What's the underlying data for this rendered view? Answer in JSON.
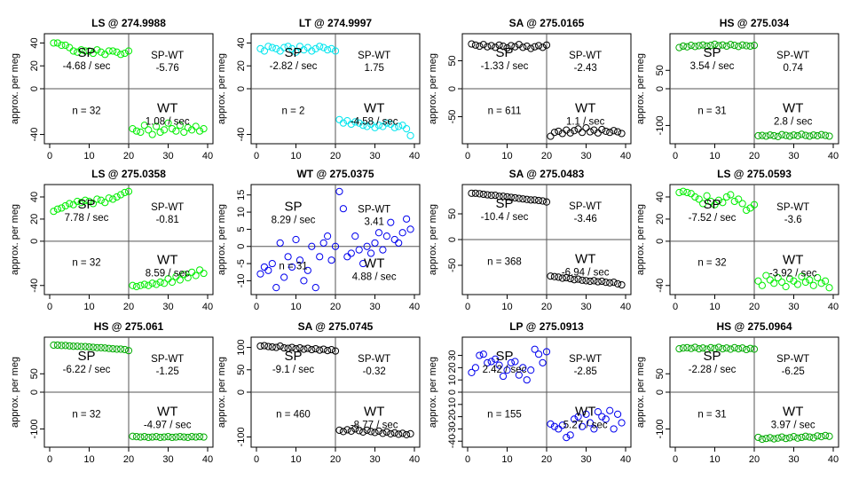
{
  "chart_data": [
    {
      "type": "scatter",
      "title": "LS @ 274.9988",
      "ylabel": "approx. per meg",
      "color": "#00ee00",
      "xlim": [
        0,
        40
      ],
      "ylim": [
        -45,
        45
      ],
      "yticks": [
        -40,
        0,
        20,
        40
      ],
      "xticks": [
        0,
        10,
        20,
        30,
        40
      ],
      "hline": 0,
      "vline": 20,
      "x": [
        1,
        2,
        3,
        4,
        5,
        6,
        7,
        8,
        9,
        10,
        11,
        12,
        13,
        14,
        15,
        16,
        17,
        18,
        19,
        20,
        21,
        22,
        23,
        24,
        25,
        26,
        27,
        28,
        29,
        30,
        31,
        32,
        33,
        34,
        35,
        36,
        37,
        38,
        39
      ],
      "y": [
        40,
        40,
        38,
        38,
        36,
        33,
        32,
        34,
        33,
        33,
        31,
        34,
        32,
        30,
        33,
        33,
        32,
        30,
        31,
        33,
        -35,
        -37,
        -38,
        -32,
        -36,
        -40,
        -33,
        -38,
        -36,
        -30,
        -35,
        -37,
        -32,
        -38,
        -34,
        -36,
        -33,
        -37,
        -35
      ],
      "labels": {
        "sp": "SP",
        "sp_rate": "-4.68 / sec",
        "spwt": "SP-WT",
        "spwt_val": "-5.76",
        "n": "n = 32",
        "wt": "WT",
        "wt_rate": "1.08 / sec"
      }
    },
    {
      "type": "scatter",
      "title": "LT @ 274.9997",
      "ylabel": "approx. per meg",
      "color": "#00e5ee",
      "xlim": [
        0,
        40
      ],
      "ylim": [
        -45,
        45
      ],
      "yticks": [
        -40,
        0,
        20,
        40
      ],
      "xticks": [
        0,
        10,
        20,
        30,
        40
      ],
      "hline": 0,
      "vline": 20,
      "x": [
        1,
        2,
        3,
        4,
        5,
        6,
        7,
        8,
        9,
        10,
        11,
        12,
        13,
        14,
        15,
        16,
        17,
        18,
        19,
        20,
        21,
        22,
        23,
        24,
        25,
        26,
        27,
        28,
        29,
        30,
        31,
        32,
        33,
        34,
        35,
        36,
        37,
        38,
        39
      ],
      "y": [
        35,
        33,
        37,
        36,
        35,
        33,
        36,
        37,
        35,
        32,
        37,
        34,
        36,
        33,
        35,
        37,
        36,
        34,
        35,
        33,
        -27,
        -30,
        -28,
        -31,
        -29,
        -30,
        -32,
        -33,
        -31,
        -34,
        -32,
        -33,
        -30,
        -31,
        -34,
        -33,
        -32,
        -35,
        -41
      ],
      "labels": {
        "sp": "SP",
        "sp_rate": "-2.82 / sec",
        "spwt": "SP-WT",
        "spwt_val": "1.75",
        "n": "n = 2",
        "wt": "WT",
        "wt_rate": "-4.58 / sec"
      }
    },
    {
      "type": "scatter",
      "title": "SA @ 275.0165",
      "ylabel": "approx. per meg",
      "color": "#000000",
      "xlim": [
        0,
        40
      ],
      "ylim": [
        -92,
        92
      ],
      "yticks": [
        -50,
        0,
        50
      ],
      "xticks": [
        0,
        10,
        20,
        30,
        40
      ],
      "hline": 0,
      "vline": 20,
      "x": [
        1,
        2,
        3,
        4,
        5,
        6,
        7,
        8,
        9,
        10,
        11,
        12,
        13,
        14,
        15,
        16,
        17,
        18,
        19,
        20,
        21,
        22,
        23,
        24,
        25,
        26,
        27,
        28,
        29,
        30,
        31,
        32,
        33,
        34,
        35,
        36,
        37,
        38,
        39
      ],
      "y": [
        80,
        78,
        76,
        79,
        75,
        77,
        74,
        78,
        76,
        73,
        77,
        75,
        79,
        74,
        76,
        72,
        75,
        77,
        74,
        78,
        -85,
        -78,
        -76,
        -80,
        -74,
        -79,
        -75,
        -72,
        -78,
        -70,
        -77,
        -74,
        -79,
        -73,
        -76,
        -78,
        -75,
        -77,
        -80
      ],
      "labels": {
        "sp": "SP",
        "sp_rate": "-1.33 / sec",
        "spwt": "SP-WT",
        "spwt_val": "-2.43",
        "n": "n = 611",
        "wt": "WT",
        "wt_rate": "1.1 / sec"
      }
    },
    {
      "type": "scatter",
      "title": "HS @ 275.034",
      "ylabel": "approx. per meg",
      "color": "#00aa00",
      "xlim": [
        0,
        40
      ],
      "ylim": [
        -140,
        140
      ],
      "yticks": [
        -100,
        0,
        50
      ],
      "xticks": [
        0,
        10,
        20,
        30,
        40
      ],
      "hline": 0,
      "vline": 20,
      "x": [
        1,
        2,
        3,
        4,
        5,
        6,
        7,
        8,
        9,
        10,
        11,
        12,
        13,
        14,
        15,
        16,
        17,
        18,
        19,
        20,
        21,
        22,
        23,
        24,
        25,
        26,
        27,
        28,
        29,
        30,
        31,
        32,
        33,
        34,
        35,
        36,
        37,
        38,
        39
      ],
      "y": [
        112,
        116,
        114,
        118,
        115,
        117,
        119,
        116,
        118,
        121,
        117,
        119,
        116,
        120,
        118,
        115,
        119,
        117,
        116,
        118,
        -128,
        -127,
        -129,
        -126,
        -128,
        -130,
        -125,
        -127,
        -129,
        -126,
        -128,
        -124,
        -127,
        -129,
        -126,
        -128,
        -125,
        -127,
        -129
      ],
      "labels": {
        "sp": "SP",
        "sp_rate": "3.54 / sec",
        "spwt": "SP-WT",
        "spwt_val": "0.74",
        "n": "n = 31",
        "wt": "WT",
        "wt_rate": "2.8 / sec"
      }
    },
    {
      "type": "scatter",
      "title": "LS @ 275.0358",
      "ylabel": "approx. per meg",
      "color": "#00ee00",
      "xlim": [
        0,
        40
      ],
      "ylim": [
        -45,
        48
      ],
      "yticks": [
        -40,
        0,
        20,
        40
      ],
      "xticks": [
        0,
        10,
        20,
        30,
        40
      ],
      "hline": 0,
      "vline": 20,
      "x": [
        1,
        2,
        3,
        4,
        5,
        6,
        7,
        8,
        9,
        10,
        11,
        12,
        13,
        14,
        15,
        16,
        17,
        18,
        19,
        20,
        21,
        22,
        23,
        24,
        25,
        26,
        27,
        28,
        29,
        30,
        31,
        32,
        33,
        34,
        35,
        36,
        37,
        38,
        39
      ],
      "y": [
        27,
        29,
        30,
        32,
        34,
        33,
        36,
        35,
        37,
        36,
        34,
        38,
        37,
        35,
        39,
        38,
        40,
        42,
        44,
        45,
        -40,
        -41,
        -40,
        -39,
        -40,
        -38,
        -39,
        -37,
        -38,
        -34,
        -37,
        -32,
        -35,
        -30,
        -33,
        -28,
        -31,
        -26,
        -29
      ],
      "labels": {
        "sp": "SP",
        "sp_rate": "7.78 / sec",
        "spwt": "SP-WT",
        "spwt_val": "-0.81",
        "n": "n = 32",
        "wt": "WT",
        "wt_rate": "8.59 / sec"
      }
    },
    {
      "type": "scatter",
      "title": "WT @ 275.0375",
      "ylabel": "approx. per meg",
      "color": "#0000ee",
      "xlim": [
        0,
        40
      ],
      "ylim": [
        -13,
        17
      ],
      "yticks": [
        -10,
        -5,
        0,
        5,
        10,
        15
      ],
      "xticks": [
        0,
        10,
        20,
        30,
        40
      ],
      "hline": 0,
      "vline": 20,
      "x": [
        1,
        2,
        3,
        4,
        5,
        6,
        7,
        8,
        9,
        10,
        11,
        12,
        13,
        14,
        15,
        16,
        17,
        18,
        19,
        20,
        21,
        22,
        23,
        24,
        25,
        26,
        27,
        28,
        29,
        30,
        31,
        32,
        33,
        34,
        35,
        36,
        37,
        38,
        39
      ],
      "y": [
        -8,
        -6,
        -7,
        -5,
        -12,
        1,
        -9,
        -3,
        -6,
        2,
        -4,
        -10,
        -7,
        0,
        -12,
        -3,
        1,
        3,
        -4,
        0,
        16,
        11,
        -3,
        -2,
        3,
        -1,
        -5,
        0,
        -2,
        1,
        4,
        -1,
        3,
        7,
        2,
        1,
        4,
        8,
        5
      ],
      "labels": {
        "sp": "SP",
        "sp_rate": "8.29 / sec",
        "spwt": "SP-WT",
        "spwt_val": "3.41",
        "n": "n = 31",
        "wt": "WT",
        "wt_rate": "4.88 / sec"
      }
    },
    {
      "type": "scatter",
      "title": "SA @ 275.0483",
      "ylabel": "approx. per meg",
      "color": "#000000",
      "xlim": [
        0,
        40
      ],
      "ylim": [
        -100,
        100
      ],
      "yticks": [
        -50,
        0,
        50
      ],
      "xticks": [
        0,
        10,
        20,
        30,
        40
      ],
      "hline": 0,
      "vline": 20,
      "x": [
        1,
        2,
        3,
        4,
        5,
        6,
        7,
        8,
        9,
        10,
        11,
        12,
        13,
        14,
        15,
        16,
        17,
        18,
        19,
        20,
        21,
        22,
        23,
        24,
        25,
        26,
        27,
        28,
        29,
        30,
        31,
        32,
        33,
        34,
        35,
        36,
        37,
        38,
        39
      ],
      "y": [
        90,
        90,
        89,
        88,
        87,
        86,
        86,
        84,
        84,
        83,
        82,
        81,
        80,
        79,
        78,
        77,
        77,
        76,
        75,
        73,
        -71,
        -72,
        -73,
        -75,
        -74,
        -76,
        -78,
        -77,
        -79,
        -80,
        -81,
        -80,
        -82,
        -81,
        -83,
        -84,
        -83,
        -86,
        -88
      ],
      "labels": {
        "sp": "SP",
        "sp_rate": "-10.4 / sec",
        "spwt": "SP-WT",
        "spwt_val": "-3.46",
        "n": "n = 368",
        "wt": "WT",
        "wt_rate": "-6.94 / sec"
      }
    },
    {
      "type": "scatter",
      "title": "LS @ 275.0593",
      "ylabel": "approx. per meg",
      "color": "#00ee00",
      "xlim": [
        0,
        40
      ],
      "ylim": [
        -45,
        48
      ],
      "yticks": [
        -40,
        0,
        20,
        40
      ],
      "xticks": [
        0,
        10,
        20,
        30,
        40
      ],
      "hline": 0,
      "vline": 20,
      "x": [
        1,
        2,
        3,
        4,
        5,
        6,
        7,
        8,
        9,
        10,
        11,
        12,
        13,
        14,
        15,
        16,
        17,
        18,
        19,
        20,
        21,
        22,
        23,
        24,
        25,
        26,
        27,
        28,
        29,
        30,
        31,
        32,
        33,
        34,
        35,
        36,
        37,
        38,
        39
      ],
      "y": [
        44,
        45,
        44,
        43,
        40,
        38,
        34,
        41,
        36,
        33,
        37,
        35,
        40,
        42,
        36,
        38,
        34,
        28,
        30,
        33,
        -36,
        -40,
        -31,
        -35,
        -38,
        -33,
        -37,
        -41,
        -34,
        -36,
        -39,
        -32,
        -37,
        -35,
        -40,
        -33,
        -38,
        -36,
        -42
      ],
      "labels": {
        "sp": "SP",
        "sp_rate": "-7.52 / sec",
        "spwt": "SP-WT",
        "spwt_val": "-3.6",
        "n": "n = 32",
        "wt": "WT",
        "wt_rate": "-3.92 / sec"
      }
    },
    {
      "type": "scatter",
      "title": "HS @ 275.061",
      "ylabel": "approx. per meg",
      "color": "#00aa00",
      "xlim": [
        0,
        40
      ],
      "ylim": [
        -140,
        140
      ],
      "yticks": [
        -100,
        0,
        50
      ],
      "xticks": [
        0,
        10,
        20,
        30,
        40
      ],
      "hline": 0,
      "vline": 20,
      "x": [
        1,
        2,
        3,
        4,
        5,
        6,
        7,
        8,
        9,
        10,
        11,
        12,
        13,
        14,
        15,
        16,
        17,
        18,
        19,
        20,
        21,
        22,
        23,
        24,
        25,
        26,
        27,
        28,
        29,
        30,
        31,
        32,
        33,
        34,
        35,
        36,
        37,
        38,
        39
      ],
      "y": [
        128,
        128,
        127,
        127,
        126,
        125,
        125,
        124,
        124,
        123,
        122,
        121,
        121,
        120,
        119,
        118,
        117,
        117,
        116,
        113,
        -120,
        -121,
        -122,
        -121,
        -123,
        -122,
        -121,
        -123,
        -122,
        -121,
        -123,
        -122,
        -121,
        -122,
        -123,
        -121,
        -122,
        -121,
        -122
      ],
      "labels": {
        "sp": "SP",
        "sp_rate": "-6.22 / sec",
        "spwt": "SP-WT",
        "spwt_val": "-1.25",
        "n": "n = 32",
        "wt": "WT",
        "wt_rate": "-4.97 / sec"
      }
    },
    {
      "type": "scatter",
      "title": "SA @ 275.0745",
      "ylabel": "approx. per meg",
      "color": "#000000",
      "xlim": [
        0,
        40
      ],
      "ylim": [
        -115,
        115
      ],
      "yticks": [
        -100,
        0,
        50,
        100
      ],
      "xticks": [
        0,
        10,
        20,
        30,
        40
      ],
      "hline": 0,
      "vline": 20,
      "x": [
        1,
        2,
        3,
        4,
        5,
        6,
        7,
        8,
        9,
        10,
        11,
        12,
        13,
        14,
        15,
        16,
        17,
        18,
        19,
        20,
        21,
        22,
        23,
        24,
        25,
        26,
        27,
        28,
        29,
        30,
        31,
        32,
        33,
        34,
        35,
        36,
        37,
        38,
        39
      ],
      "y": [
        103,
        104,
        102,
        101,
        100,
        103,
        99,
        98,
        100,
        97,
        99,
        96,
        98,
        95,
        97,
        94,
        96,
        93,
        95,
        92,
        -85,
        -88,
        -84,
        -87,
        -82,
        -86,
        -89,
        -85,
        -88,
        -90,
        -87,
        -92,
        -89,
        -93,
        -91,
        -94,
        -92,
        -95,
        -93
      ],
      "labels": {
        "sp": "SP",
        "sp_rate": "-9.1 / sec",
        "spwt": "SP-WT",
        "spwt_val": "-0.32",
        "n": "n = 460",
        "wt": "WT",
        "wt_rate": "-8.77 / sec"
      }
    },
    {
      "type": "scatter",
      "title": "LP @ 275.0913",
      "ylabel": "approx. per meg",
      "color": "#0000ee",
      "xlim": [
        0,
        40
      ],
      "ylim": [
        -42,
        42
      ],
      "yticks": [
        -40,
        -30,
        -20,
        -10,
        0,
        10,
        20,
        30
      ],
      "xticks": [
        0,
        10,
        20,
        30,
        40
      ],
      "hline": 0,
      "vline": 20,
      "x": [
        1,
        2,
        3,
        4,
        5,
        6,
        7,
        8,
        9,
        10,
        11,
        12,
        13,
        14,
        15,
        16,
        17,
        18,
        19,
        20,
        21,
        22,
        23,
        24,
        25,
        26,
        27,
        28,
        29,
        30,
        31,
        32,
        33,
        34,
        35,
        36,
        37,
        38,
        39
      ],
      "y": [
        16,
        20,
        30,
        31,
        24,
        25,
        27,
        22,
        13,
        18,
        24,
        25,
        14,
        20,
        10,
        18,
        35,
        31,
        24,
        33,
        -26,
        -28,
        -30,
        -27,
        -37,
        -35,
        -22,
        -20,
        -28,
        -18,
        -25,
        -30,
        -16,
        -20,
        -22,
        -15,
        -30,
        -18,
        -25
      ],
      "labels": {
        "sp": "SP",
        "sp_rate": "2.42 / sec",
        "spwt": "SP-WT",
        "spwt_val": "-2.85",
        "n": "n = 155",
        "wt": "WT",
        "wt_rate": "5.27 / sec"
      }
    },
    {
      "type": "scatter",
      "title": "HS @ 275.0964",
      "ylabel": "approx. per meg",
      "color": "#00aa00",
      "xlim": [
        0,
        40
      ],
      "ylim": [
        -140,
        140
      ],
      "yticks": [
        -100,
        0,
        50
      ],
      "xticks": [
        0,
        10,
        20,
        30,
        40
      ],
      "hline": 0,
      "vline": 20,
      "x": [
        1,
        2,
        3,
        4,
        5,
        6,
        7,
        8,
        9,
        10,
        11,
        12,
        13,
        14,
        15,
        16,
        17,
        18,
        19,
        20,
        21,
        22,
        23,
        24,
        25,
        26,
        27,
        28,
        29,
        30,
        31,
        32,
        33,
        34,
        35,
        36,
        37,
        38,
        39
      ],
      "y": [
        118,
        120,
        121,
        119,
        122,
        118,
        120,
        117,
        121,
        119,
        122,
        118,
        120,
        117,
        121,
        118,
        120,
        116,
        119,
        117,
        -123,
        -128,
        -126,
        -124,
        -127,
        -125,
        -122,
        -126,
        -124,
        -121,
        -125,
        -123,
        -120,
        -122,
        -124,
        -119,
        -121,
        -118,
        -120
      ],
      "labels": {
        "sp": "SP",
        "sp_rate": "-2.28 / sec",
        "spwt": "SP-WT",
        "spwt_val": "-6.25",
        "n": "n = 31",
        "wt": "WT",
        "wt_rate": "3.97 / sec"
      }
    }
  ]
}
